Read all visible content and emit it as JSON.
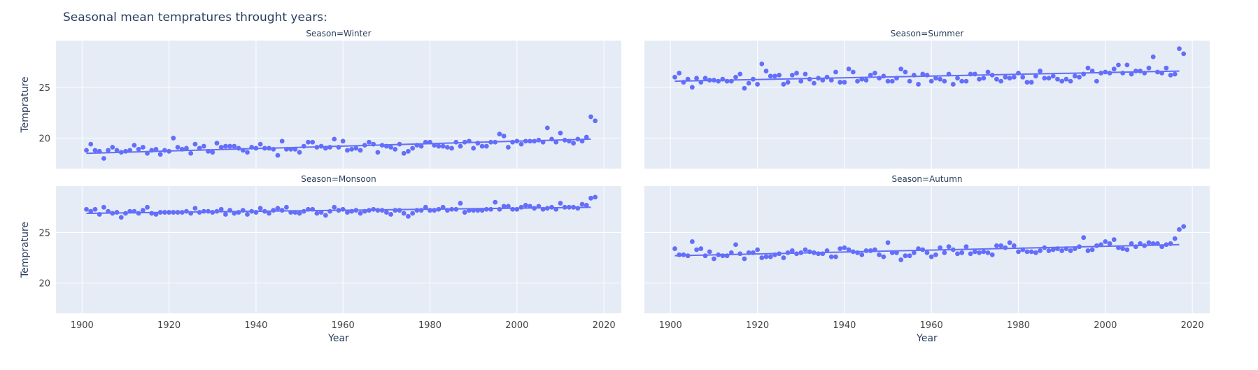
{
  "title": "Seasonal mean tempratures throught years:",
  "colors": {
    "plot_bg": "#E5ECF6",
    "grid": "#FFFFFF",
    "marker": "#636EFA",
    "text": "#2a3f5f",
    "tick_text": "#444444"
  },
  "chart_data": {
    "type": "scatter",
    "title": "Seasonal mean tempratures throught years:",
    "xlabel": "Year",
    "ylabel": "Temprature",
    "xlim": [
      1894,
      2024
    ],
    "ylim": [
      17,
      29.6
    ],
    "x_ticks": [
      1900,
      1920,
      1940,
      1960,
      1980,
      2000,
      2020
    ],
    "y_ticks": [
      20,
      25
    ],
    "grid": true,
    "legend": "none",
    "trendline": "ols",
    "x_start": 1901,
    "panels": [
      {
        "name": "Season=Winter",
        "trend": [
          {
            "x": 1901,
            "y": 18.5
          },
          {
            "x": 2017,
            "y": 19.9
          }
        ],
        "values": [
          18.8,
          19.4,
          18.8,
          18.7,
          18.0,
          18.8,
          19.1,
          18.8,
          18.6,
          18.7,
          18.8,
          19.3,
          18.9,
          19.1,
          18.5,
          18.8,
          18.9,
          18.4,
          18.8,
          18.7,
          20.0,
          19.1,
          18.9,
          19.0,
          18.5,
          19.4,
          19.0,
          19.2,
          18.7,
          18.6,
          19.5,
          19.1,
          19.2,
          19.2,
          19.2,
          19.0,
          18.8,
          18.6,
          19.1,
          19.0,
          19.4,
          19.0,
          19.0,
          18.9,
          18.3,
          19.7,
          18.9,
          18.9,
          18.9,
          18.6,
          19.2,
          19.6,
          19.6,
          19.1,
          19.2,
          19.0,
          19.1,
          19.9,
          19.1,
          19.7,
          18.8,
          18.9,
          19.0,
          18.8,
          19.3,
          19.6,
          19.4,
          18.6,
          19.3,
          19.2,
          19.1,
          18.9,
          19.4,
          18.5,
          18.7,
          19.0,
          19.3,
          19.2,
          19.6,
          19.6,
          19.3,
          19.2,
          19.2,
          19.1,
          19.0,
          19.6,
          19.2,
          19.6,
          19.7,
          19.0,
          19.5,
          19.2,
          19.2,
          19.6,
          19.6,
          20.4,
          20.2,
          19.1,
          19.6,
          19.7,
          19.4,
          19.7,
          19.7,
          19.7,
          19.8,
          19.6,
          21.0,
          19.9,
          19.6,
          20.5,
          19.8,
          19.7,
          19.5,
          19.9,
          19.7,
          20.1,
          22.1,
          21.7
        ]
      },
      {
        "name": "Season=Summer",
        "trend": [
          {
            "x": 1901,
            "y": 25.6
          },
          {
            "x": 2017,
            "y": 26.6
          }
        ],
        "values": [
          26.0,
          26.4,
          25.5,
          25.8,
          25.0,
          25.9,
          25.5,
          25.9,
          25.7,
          25.7,
          25.6,
          25.8,
          25.6,
          25.6,
          26.0,
          26.3,
          24.9,
          25.4,
          25.8,
          25.3,
          27.3,
          26.6,
          26.1,
          26.1,
          26.2,
          25.3,
          25.5,
          26.2,
          26.4,
          25.6,
          26.3,
          25.8,
          25.4,
          25.9,
          25.7,
          26.0,
          25.7,
          26.5,
          25.5,
          25.5,
          26.8,
          26.5,
          25.6,
          25.8,
          25.7,
          26.2,
          26.4,
          25.9,
          26.1,
          25.6,
          25.6,
          25.9,
          26.8,
          26.5,
          25.6,
          26.2,
          25.3,
          26.3,
          26.2,
          25.6,
          25.9,
          25.8,
          25.6,
          26.3,
          25.3,
          25.9,
          25.6,
          25.6,
          26.3,
          26.3,
          25.8,
          25.9,
          26.5,
          26.2,
          25.8,
          25.6,
          26.0,
          25.9,
          26.0,
          26.4,
          26.0,
          25.5,
          25.5,
          26.1,
          26.6,
          25.9,
          25.9,
          26.1,
          25.8,
          25.6,
          25.8,
          25.6,
          26.1,
          26.0,
          26.3,
          26.9,
          26.6,
          25.6,
          26.4,
          26.5,
          26.4,
          26.8,
          27.2,
          26.4,
          27.2,
          26.3,
          26.6,
          26.6,
          26.4,
          26.9,
          28.0,
          26.5,
          26.4,
          26.9,
          26.2,
          26.3,
          28.8,
          28.3
        ]
      },
      {
        "name": "Season=Monsoon",
        "trend": [
          {
            "x": 1901,
            "y": 26.9
          },
          {
            "x": 2017,
            "y": 27.5
          }
        ],
        "values": [
          27.3,
          27.1,
          27.3,
          26.8,
          27.5,
          27.1,
          26.9,
          27.0,
          26.5,
          26.9,
          27.1,
          27.1,
          26.9,
          27.2,
          27.5,
          26.9,
          26.8,
          27.0,
          27.0,
          27.0,
          27.0,
          27.0,
          27.0,
          27.1,
          26.9,
          27.4,
          27.0,
          27.1,
          27.1,
          27.0,
          27.1,
          27.3,
          26.8,
          27.2,
          26.9,
          27.0,
          27.2,
          26.8,
          27.1,
          27.0,
          27.4,
          27.1,
          26.9,
          27.2,
          27.4,
          27.2,
          27.5,
          27.0,
          27.0,
          26.9,
          27.1,
          27.3,
          27.3,
          26.9,
          27.0,
          26.7,
          27.1,
          27.5,
          27.2,
          27.3,
          27.0,
          27.1,
          27.2,
          26.9,
          27.1,
          27.2,
          27.3,
          27.2,
          27.2,
          27.0,
          26.8,
          27.2,
          27.2,
          26.9,
          26.6,
          26.9,
          27.2,
          27.2,
          27.5,
          27.2,
          27.2,
          27.3,
          27.5,
          27.2,
          27.3,
          27.3,
          27.9,
          27.0,
          27.2,
          27.2,
          27.2,
          27.2,
          27.3,
          27.3,
          28.0,
          27.3,
          27.6,
          27.6,
          27.3,
          27.3,
          27.5,
          27.7,
          27.6,
          27.4,
          27.6,
          27.3,
          27.4,
          27.5,
          27.3,
          27.9,
          27.5,
          27.5,
          27.5,
          27.4,
          27.8,
          27.7,
          28.4,
          28.5
        ]
      },
      {
        "name": "Season=Autumn",
        "trend": [
          {
            "x": 1901,
            "y": 22.7
          },
          {
            "x": 2017,
            "y": 23.8
          }
        ],
        "values": [
          23.4,
          22.8,
          22.8,
          22.7,
          24.1,
          23.3,
          23.4,
          22.7,
          23.1,
          22.4,
          22.8,
          22.7,
          22.7,
          23.0,
          23.8,
          22.9,
          22.4,
          23.0,
          23.0,
          23.3,
          22.5,
          22.6,
          22.6,
          22.8,
          22.9,
          22.5,
          23.0,
          23.2,
          22.9,
          23.0,
          23.3,
          23.1,
          23.0,
          22.9,
          22.9,
          23.2,
          22.6,
          22.6,
          23.4,
          23.5,
          23.3,
          23.1,
          23.0,
          22.8,
          23.2,
          23.2,
          23.3,
          22.8,
          22.6,
          24.0,
          23.0,
          23.0,
          22.3,
          22.7,
          22.7,
          23.0,
          23.4,
          23.3,
          23.0,
          22.6,
          22.8,
          23.5,
          23.0,
          23.6,
          23.3,
          22.9,
          23.0,
          23.6,
          22.9,
          23.1,
          23.0,
          23.1,
          23.0,
          22.8,
          23.7,
          23.7,
          23.5,
          24.0,
          23.7,
          23.1,
          23.3,
          23.1,
          23.1,
          23.0,
          23.2,
          23.5,
          23.2,
          23.3,
          23.4,
          23.2,
          23.4,
          23.2,
          23.4,
          23.6,
          24.5,
          23.2,
          23.3,
          23.7,
          23.8,
          24.1,
          23.9,
          24.3,
          23.5,
          23.4,
          23.3,
          23.9,
          23.6,
          23.9,
          23.7,
          24.0,
          23.9,
          23.9,
          23.6,
          23.8,
          23.9,
          24.4,
          25.3,
          25.6
        ]
      }
    ]
  }
}
